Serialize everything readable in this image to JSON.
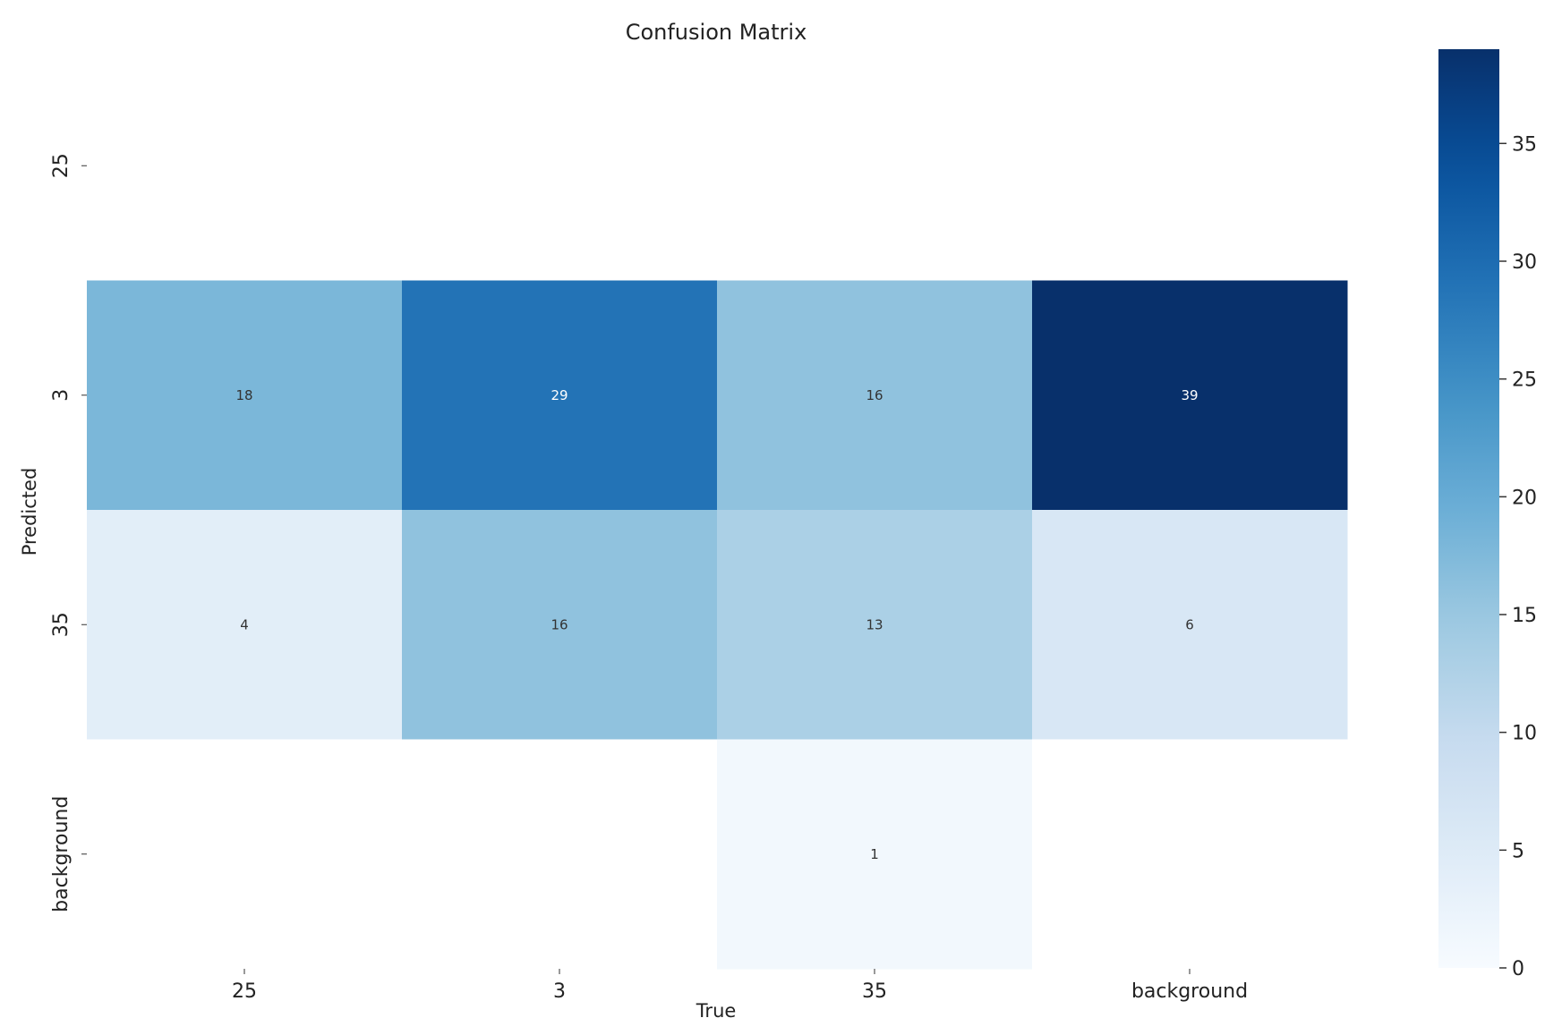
{
  "chart_data": {
    "type": "heatmap",
    "title": "Confusion Matrix",
    "xlabel": "True",
    "ylabel": "Predicted",
    "x_categories": [
      "25",
      "3",
      "35",
      "background"
    ],
    "y_categories": [
      "25",
      "3",
      "35",
      "background"
    ],
    "values": [
      [
        0,
        0,
        0,
        0
      ],
      [
        18,
        29,
        16,
        39
      ],
      [
        4,
        16,
        13,
        6
      ],
      [
        0,
        0,
        1,
        0
      ]
    ],
    "annotations": [
      [
        "",
        "",
        "",
        ""
      ],
      [
        "18",
        "29",
        "16",
        "39"
      ],
      [
        "4",
        "16",
        "13",
        "6"
      ],
      [
        "",
        "",
        "1",
        ""
      ]
    ],
    "colormap": "Blues",
    "color_range": [
      0,
      39
    ],
    "colorbar": {
      "ticks": [
        0,
        5,
        10,
        15,
        20,
        25,
        30,
        35
      ],
      "tick_labels": [
        "0",
        "5",
        "10",
        "15",
        "20",
        "25",
        "30",
        "35"
      ]
    },
    "grid": false
  }
}
